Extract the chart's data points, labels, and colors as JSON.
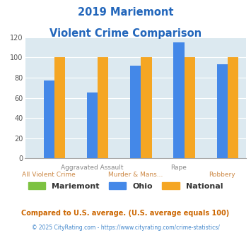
{
  "title_line1": "2019 Mariemont",
  "title_line2": "Violent Crime Comparison",
  "categories": [
    "All Violent Crime",
    "Aggravated Assault",
    "Murder & Mans...",
    "Rape",
    "Robbery"
  ],
  "x_label_row1": [
    "",
    "Aggravated Assault",
    "",
    "Rape",
    ""
  ],
  "x_label_row2": [
    "All Violent Crime",
    "",
    "Murder & Mans...",
    "",
    "Robbery"
  ],
  "series": {
    "Mariemont": [
      0,
      0,
      0,
      0,
      0
    ],
    "Ohio": [
      77,
      65,
      92,
      115,
      93
    ],
    "National": [
      100,
      100,
      100,
      100,
      100
    ]
  },
  "colors": {
    "Mariemont": "#7dc241",
    "Ohio": "#4488e8",
    "National": "#f5a623"
  },
  "ylim": [
    0,
    120
  ],
  "yticks": [
    0,
    20,
    40,
    60,
    80,
    100,
    120
  ],
  "title_color": "#2266bb",
  "row1_color": "#888888",
  "row2_color": "#cc8844",
  "background_color": "#dce9f0",
  "grid_color": "#c0d4e0",
  "footnote1": "Compared to U.S. average. (U.S. average equals 100)",
  "footnote2": "© 2025 CityRating.com - https://www.cityrating.com/crime-statistics/",
  "footnote1_color": "#cc6600",
  "footnote2_color": "#4488cc",
  "legend_label_color": "#333333"
}
